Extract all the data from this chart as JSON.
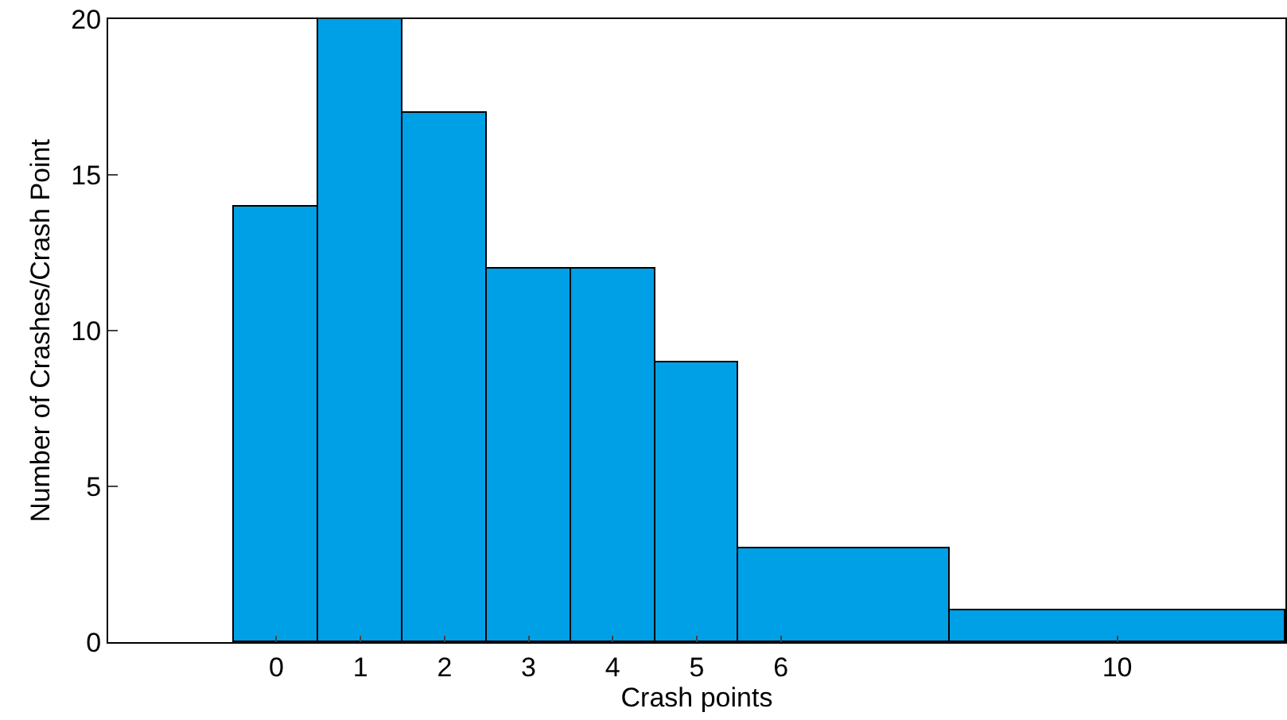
{
  "chart_data": {
    "type": "histogram",
    "xlabel": "Crash points",
    "ylabel": "Number of Crashes/Crash Point",
    "bins": [
      -0.5,
      0.5,
      1.5,
      2.5,
      3.5,
      4.5,
      5.5,
      8,
      12
    ],
    "values": [
      14,
      20,
      17,
      12,
      12,
      9,
      3,
      1
    ],
    "color": "#00a0e6",
    "xlim": [
      -2,
      12
    ],
    "xticks": [
      0,
      1,
      2,
      3,
      4,
      5,
      6,
      10
    ],
    "ylim": [
      0,
      20
    ],
    "yticks": [
      0,
      5,
      10,
      15,
      20
    ]
  }
}
